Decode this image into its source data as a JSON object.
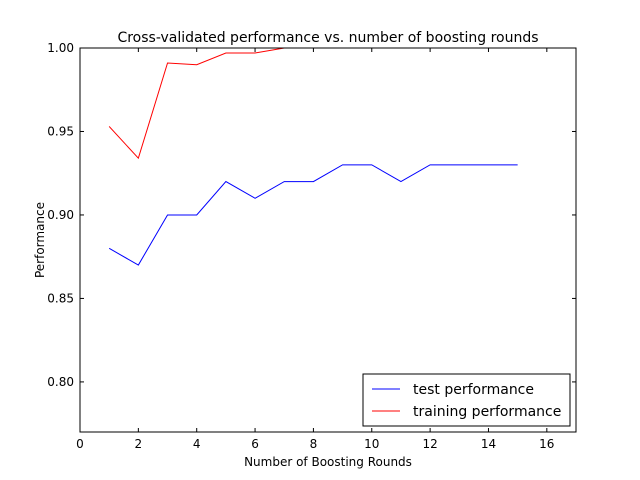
{
  "chart_data": {
    "type": "line",
    "title": "Cross-validated performance vs. number of boosting rounds",
    "xlabel": "Number of Boosting Rounds",
    "ylabel": "Performance",
    "xlim": [
      0,
      17
    ],
    "ylim": [
      0.77,
      1.0
    ],
    "xticks": [
      0,
      2,
      4,
      6,
      8,
      10,
      12,
      14,
      16
    ],
    "xtick_labels": [
      "0",
      "2",
      "4",
      "6",
      "8",
      "10",
      "12",
      "14",
      "16"
    ],
    "yticks": [
      0.8,
      0.85,
      0.9,
      0.95,
      1.0
    ],
    "ytick_labels": [
      "0.80",
      "0.85",
      "0.90",
      "0.95",
      "1.00"
    ],
    "grid": false,
    "legend_position": "lower-right",
    "series": [
      {
        "name": "test performance",
        "color": "#0000ff",
        "x": [
          1,
          2,
          3,
          4,
          5,
          6,
          7,
          8,
          9,
          10,
          11,
          12,
          13,
          14,
          15
        ],
        "y": [
          0.88,
          0.87,
          0.9,
          0.9,
          0.92,
          0.91,
          0.92,
          0.92,
          0.93,
          0.93,
          0.92,
          0.93,
          0.93,
          0.93,
          0.93
        ]
      },
      {
        "name": "training performance",
        "color": "#ff0000",
        "x": [
          1,
          2,
          3,
          4,
          5,
          6,
          7,
          8,
          9,
          10,
          11,
          12,
          13,
          14,
          15
        ],
        "y": [
          0.953,
          0.934,
          0.991,
          0.99,
          0.997,
          0.997,
          1.0,
          1.0,
          1.0,
          1.0,
          1.0,
          1.0,
          1.0,
          1.0,
          1.0
        ]
      }
    ]
  }
}
